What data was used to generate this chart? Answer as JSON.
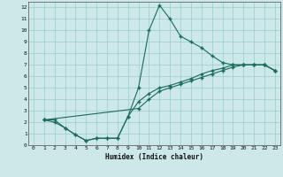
{
  "xlabel": "Humidex (Indice chaleur)",
  "xlim": [
    -0.5,
    23.5
  ],
  "ylim": [
    0,
    12.5
  ],
  "xticks": [
    0,
    1,
    2,
    3,
    4,
    5,
    6,
    7,
    8,
    9,
    10,
    11,
    12,
    13,
    14,
    15,
    16,
    17,
    18,
    19,
    20,
    21,
    22,
    23
  ],
  "yticks": [
    0,
    1,
    2,
    3,
    4,
    5,
    6,
    7,
    8,
    9,
    10,
    11,
    12
  ],
  "bg_color": "#cce8e8",
  "grid_color": "#99cccc",
  "line_color": "#1a6b5a",
  "line1_x": [
    1,
    2,
    3,
    4,
    5,
    6,
    7,
    8,
    9,
    10,
    11,
    12,
    13,
    14,
    15,
    16,
    17,
    18,
    19,
    20,
    21,
    22,
    23
  ],
  "line1_y": [
    2.2,
    2.2,
    1.5,
    0.9,
    0.4,
    0.6,
    0.6,
    0.6,
    2.5,
    5.0,
    10.0,
    12.2,
    11.0,
    9.5,
    9.0,
    8.5,
    7.8,
    7.2,
    7.0,
    7.0,
    7.0,
    7.0,
    6.5
  ],
  "line2_x": [
    1,
    2,
    3,
    4,
    5,
    6,
    7,
    8,
    9,
    10,
    11,
    12,
    13,
    14,
    15,
    16,
    17,
    18,
    19,
    20,
    21,
    22,
    23
  ],
  "line2_y": [
    2.2,
    2.0,
    1.5,
    0.9,
    0.4,
    0.6,
    0.6,
    0.6,
    2.5,
    3.8,
    4.5,
    5.0,
    5.2,
    5.5,
    5.8,
    6.2,
    6.5,
    6.7,
    7.0,
    7.0,
    7.0,
    7.0,
    6.5
  ],
  "line3_x": [
    1,
    10,
    11,
    12,
    13,
    14,
    15,
    16,
    17,
    18,
    19,
    20,
    21,
    22,
    23
  ],
  "line3_y": [
    2.2,
    3.2,
    4.0,
    4.7,
    5.0,
    5.3,
    5.6,
    5.9,
    6.2,
    6.5,
    6.8,
    7.0,
    7.0,
    7.0,
    6.5
  ]
}
